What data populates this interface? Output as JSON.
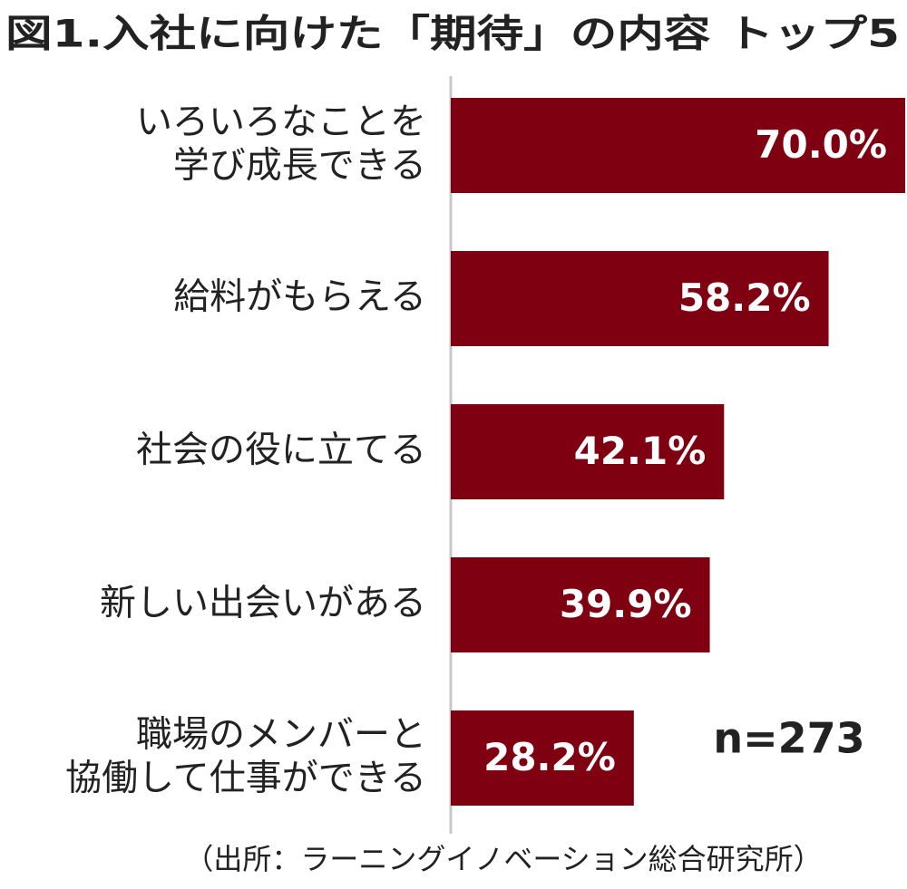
{
  "chart_data": {
    "type": "hbar",
    "title": "図1.入社に向けた「期待」の内容 トップ5",
    "categories": [
      [
        "いろいろなことを",
        "学び成長できる"
      ],
      [
        "給料がもらえる"
      ],
      [
        "社会の役に立てる"
      ],
      [
        "新しい出会いがある"
      ],
      [
        "職場のメンバーと",
        "協働して仕事ができる"
      ]
    ],
    "values": [
      70.0,
      58.2,
      42.1,
      39.9,
      28.2
    ],
    "value_labels": [
      "70.0%",
      "58.2%",
      "42.1%",
      "39.9%",
      "28.2%"
    ],
    "color": "#7f0010",
    "xlim": [
      0,
      70
    ],
    "annotation": "n=273",
    "source": "（出所：ラーニングイノベーション総合研究所）"
  }
}
